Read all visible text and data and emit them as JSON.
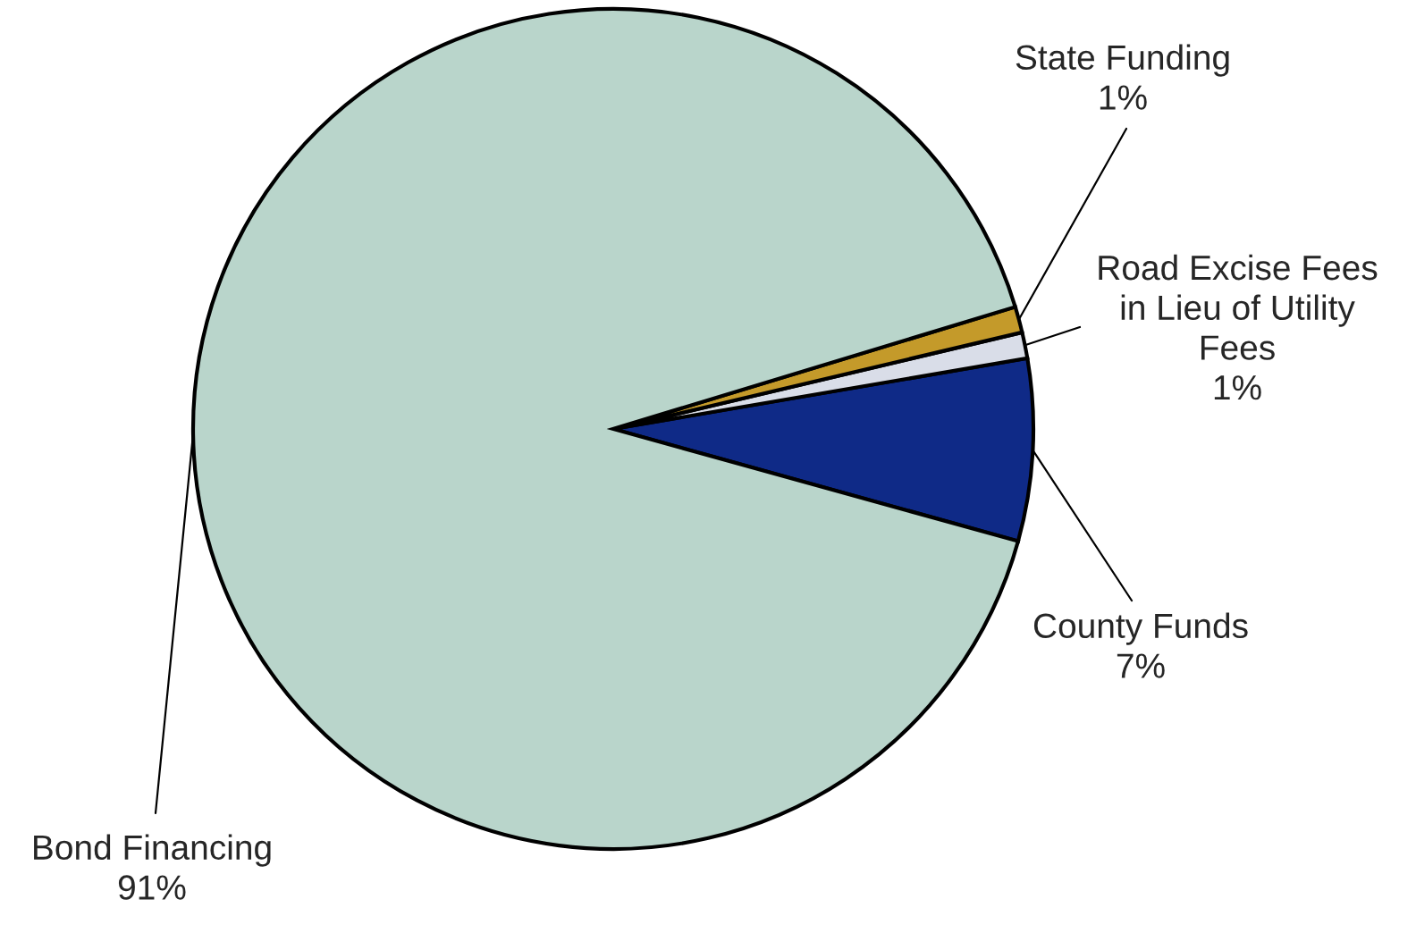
{
  "chart_data": {
    "type": "pie",
    "categories": [
      "County Funds",
      "Road Excise Fees\nin Lieu of Utility\nFees",
      "State Funding",
      "Bond Financing"
    ],
    "values": [
      7,
      1,
      1,
      91
    ],
    "value_labels": [
      "7%",
      "1%",
      "1%",
      "91%"
    ],
    "colors": [
      "#0f2a87",
      "#d9dde8",
      "#c49a2a",
      "#b9d5cb"
    ],
    "legend": false
  }
}
